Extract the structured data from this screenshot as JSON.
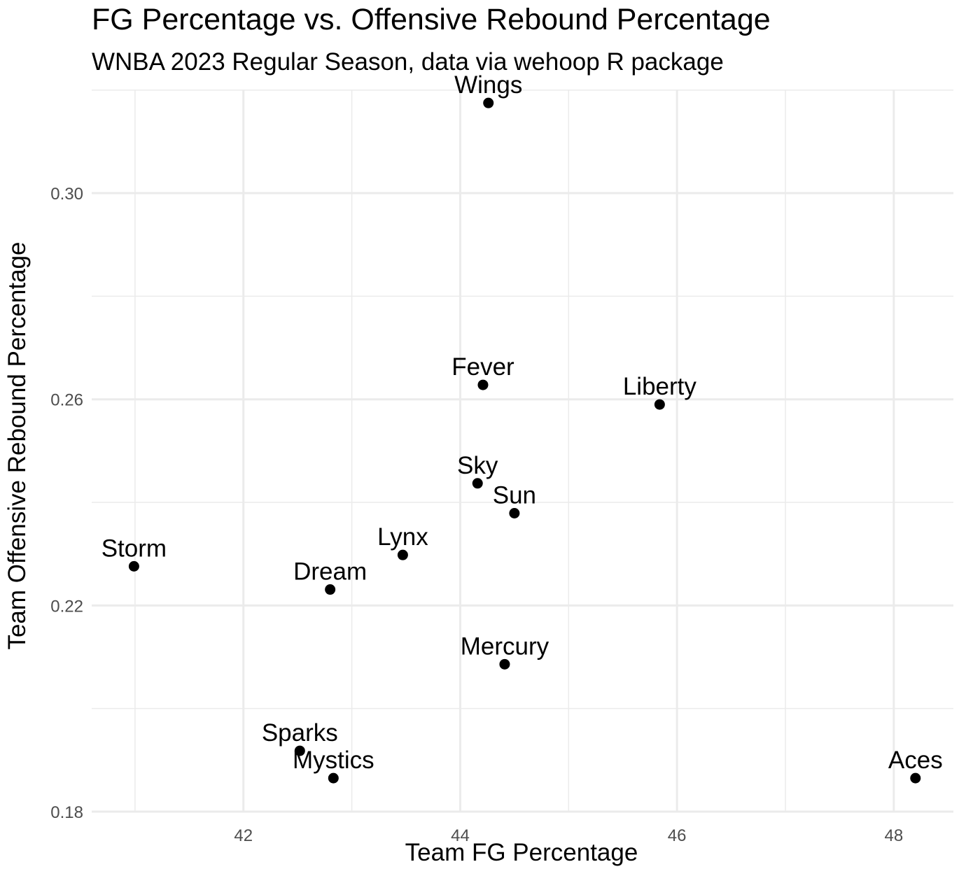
{
  "chart_data": {
    "type": "scatter",
    "title": "FG Percentage vs. Offensive Rebound Percentage",
    "subtitle": "WNBA 2023 Regular Season, data via wehoop R package",
    "xlabel": "Team FG Percentage",
    "ylabel": "Team Offensive Rebound Percentage",
    "xlim": [
      40.6,
      48.55
    ],
    "ylim": [
      0.18,
      0.3201
    ],
    "x_ticks": [
      42,
      44,
      46,
      48
    ],
    "x_tick_labels": [
      "42",
      "44",
      "46",
      "48"
    ],
    "y_ticks": [
      0.18,
      0.22,
      0.26,
      0.3
    ],
    "y_tick_labels": [
      "0.18",
      "0.22",
      "0.26",
      "0.30"
    ],
    "x_minor": [
      41,
      43,
      45,
      47
    ],
    "y_minor": [
      0.2,
      0.24,
      0.28,
      0.32
    ],
    "grid": true,
    "legend": "none",
    "points": [
      {
        "label": "Wings",
        "x": 44.26,
        "y": 0.3175
      },
      {
        "label": "Fever",
        "x": 44.21,
        "y": 0.2628
      },
      {
        "label": "Liberty",
        "x": 45.84,
        "y": 0.259
      },
      {
        "label": "Sky",
        "x": 44.16,
        "y": 0.2437
      },
      {
        "label": "Sun",
        "x": 44.5,
        "y": 0.2379
      },
      {
        "label": "Lynx",
        "x": 43.47,
        "y": 0.2298
      },
      {
        "label": "Storm",
        "x": 40.99,
        "y": 0.2276
      },
      {
        "label": "Dream",
        "x": 42.8,
        "y": 0.2231
      },
      {
        "label": "Mercury",
        "x": 44.41,
        "y": 0.2086
      },
      {
        "label": "Sparks",
        "x": 42.52,
        "y": 0.1918
      },
      {
        "label": "Mystics",
        "x": 42.83,
        "y": 0.1865
      },
      {
        "label": "Aces",
        "x": 48.2,
        "y": 0.1865
      }
    ],
    "point_color": "#000000"
  }
}
